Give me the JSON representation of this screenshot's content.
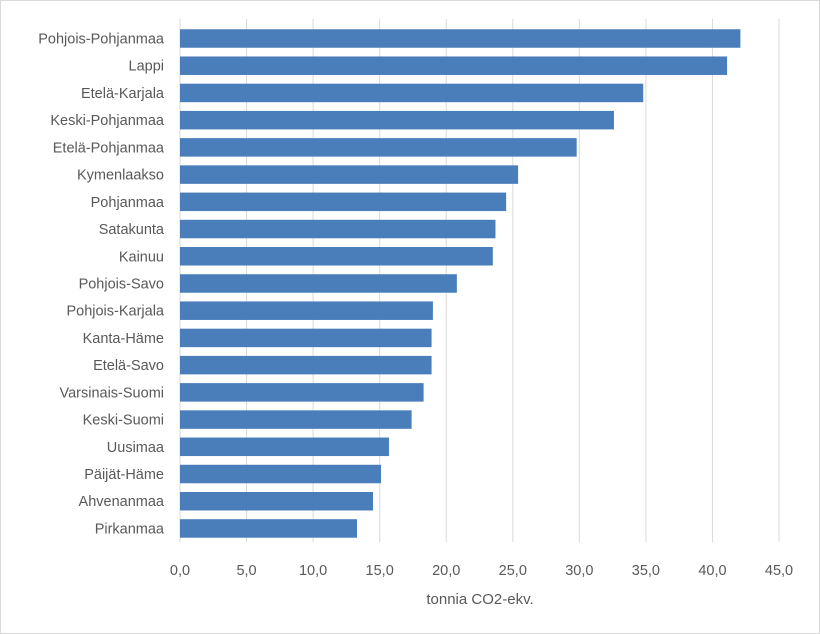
{
  "chart_data": {
    "type": "bar",
    "orientation": "horizontal",
    "categories": [
      "Pohjois-Pohjanmaa",
      "Lappi",
      "Etelä-Karjala",
      "Keski-Pohjanmaa",
      "Etelä-Pohjanmaa",
      "Kymenlaakso",
      "Pohjanmaa",
      "Satakunta",
      "Kainuu",
      "Pohjois-Savo",
      "Pohjois-Karjala",
      "Kanta-Häme",
      "Etelä-Savo",
      "Varsinais-Suomi",
      "Keski-Suomi",
      "Uusimaa",
      "Päijät-Häme",
      "Ahvenanmaa",
      "Pirkanmaa"
    ],
    "values": [
      42.1,
      41.1,
      34.8,
      32.6,
      29.8,
      25.4,
      24.5,
      23.7,
      23.5,
      20.8,
      19.0,
      18.9,
      18.9,
      18.3,
      17.4,
      15.7,
      15.1,
      14.5,
      13.3
    ],
    "xlabel": "tonnia CO2-ekv.",
    "ylabel": "",
    "title": "",
    "xlim": [
      0,
      45
    ],
    "ticks": [
      "0,0",
      "5,0",
      "10,0",
      "15,0",
      "20,0",
      "25,0",
      "30,0",
      "35,0",
      "40,0",
      "45,0"
    ],
    "grid": true,
    "bar_color": "#4a7ebb"
  }
}
